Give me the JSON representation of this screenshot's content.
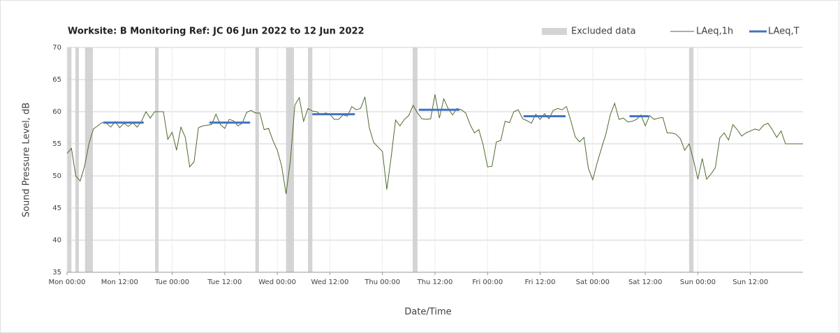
{
  "chart_data": {
    "type": "line",
    "title": "Worksite: B   Monitoring Ref: JC    06 Jun 2022 to 12 Jun 2022",
    "x_label": "Date/Time",
    "y_label": "Sound Pressure Level, dB",
    "xlim": [
      0,
      168
    ],
    "ylim": [
      35,
      70
    ],
    "xticks": [
      {
        "value": 0,
        "label": "Mon 00:00"
      },
      {
        "value": 12,
        "label": "Mon 12:00"
      },
      {
        "value": 24,
        "label": "Tue 00:00"
      },
      {
        "value": 36,
        "label": "Tue 12:00"
      },
      {
        "value": 48,
        "label": "Wed 00:00"
      },
      {
        "value": 60,
        "label": "Wed 12:00"
      },
      {
        "value": 72,
        "label": "Thu 00:00"
      },
      {
        "value": 84,
        "label": "Thu 12:00"
      },
      {
        "value": 96,
        "label": "Fri 00:00"
      },
      {
        "value": 108,
        "label": "Fri 12:00"
      },
      {
        "value": 120,
        "label": "Sat 00:00"
      },
      {
        "value": 132,
        "label": "Sat 12:00"
      },
      {
        "value": 144,
        "label": "Sun 00:00"
      },
      {
        "value": 156,
        "label": "Sun 12:00"
      }
    ],
    "yticks": [
      35,
      40,
      45,
      50,
      55,
      60,
      65,
      70
    ],
    "grid": true,
    "legend": "top-right",
    "excluded": {
      "name": "Excluded data",
      "color": "#d4d4d4",
      "ranges": [
        [
          0,
          1
        ],
        [
          1.9,
          2.7
        ],
        [
          4.1,
          5.9
        ],
        [
          20.1,
          20.9
        ],
        [
          43,
          43.8
        ],
        [
          50,
          51.8
        ],
        [
          55,
          56
        ],
        [
          78.9,
          80
        ],
        [
          142,
          143
        ]
      ]
    },
    "series": [
      {
        "name": "LAeq,1h",
        "color": "#4e6b2f",
        "x": [
          0,
          1,
          2,
          3,
          4,
          5,
          6,
          7,
          8,
          9,
          10,
          11,
          12,
          13,
          14,
          15,
          16,
          17,
          18,
          19,
          20,
          21,
          22,
          23,
          24,
          25,
          26,
          27,
          28,
          29,
          30,
          31,
          32,
          33,
          34,
          35,
          36,
          37,
          38,
          39,
          40,
          41,
          42,
          43,
          44,
          45,
          46,
          47,
          48,
          49,
          50,
          51,
          52,
          53,
          54,
          55,
          56,
          57,
          58,
          59,
          60,
          61,
          62,
          63,
          64,
          65,
          66,
          67,
          68,
          69,
          70,
          71,
          72,
          73,
          74,
          75,
          76,
          77,
          78,
          79,
          80,
          81,
          82,
          83,
          84,
          85,
          86,
          87,
          88,
          89,
          90,
          91,
          92,
          93,
          94,
          95,
          96,
          97,
          98,
          99,
          100,
          101,
          102,
          103,
          104,
          105,
          106,
          107,
          108,
          109,
          110,
          111,
          112,
          113,
          114,
          115,
          116,
          117,
          118,
          119,
          120,
          121,
          122,
          123,
          124,
          125,
          126,
          127,
          128,
          129,
          130,
          131,
          132,
          133,
          134,
          135,
          136,
          137,
          138,
          139,
          140,
          141,
          142,
          143,
          144,
          145,
          146,
          147,
          148,
          149,
          150,
          151,
          152,
          153,
          154,
          155,
          156,
          157,
          158,
          159,
          160,
          161,
          162,
          163,
          164,
          165,
          166,
          167,
          168
        ],
        "values": [
          53.5,
          54.3,
          50,
          49.2,
          51.5,
          55,
          57.3,
          57.8,
          58.3,
          58.2,
          57.6,
          58.5,
          57.5,
          58.2,
          57.7,
          58.3,
          57.6,
          58.5,
          60,
          59,
          60,
          60,
          60,
          55.7,
          56.8,
          54,
          57.6,
          56,
          51.4,
          52.2,
          57.5,
          57.8,
          57.9,
          58,
          59.6,
          58,
          57.4,
          58.8,
          58.6,
          57.8,
          58.2,
          59.9,
          60.2,
          59.8,
          59.8,
          57.2,
          57.4,
          55.5,
          54,
          51.5,
          47.2,
          52.5,
          61,
          62.2,
          58.5,
          60.5,
          60.1,
          60,
          59.5,
          59.8,
          59.6,
          58.8,
          58.8,
          59.5,
          59.3,
          60.8,
          60.3,
          60.5,
          62.3,
          57.5,
          55.2,
          54.5,
          53.8,
          47.9,
          53,
          58.7,
          57.8,
          58.8,
          59.4,
          61,
          59.8,
          58.9,
          58.8,
          58.9,
          62.7,
          59,
          62,
          60.5,
          59.5,
          60.5,
          60.3,
          59.8,
          58,
          56.7,
          57.2,
          54.8,
          51.4,
          51.5,
          55.3,
          55.5,
          58.5,
          58.3,
          60,
          60.3,
          58.9,
          58.6,
          58.2,
          59.6,
          58.8,
          59.7,
          58.9,
          60.2,
          60.5,
          60.3,
          60.8,
          58.6,
          56.1,
          55.3,
          56,
          51.2,
          49.4,
          52,
          54.3,
          56.5,
          59.5,
          61.3,
          58.8,
          59,
          58.4,
          58.5,
          58.8,
          59.5,
          57.8,
          59.4,
          58.8,
          59,
          59.1,
          56.7,
          56.7,
          56.5,
          55.8,
          54,
          55,
          52.5,
          49.5,
          52.7,
          49.5,
          50.3,
          51.3,
          55.9,
          56.7,
          55.6,
          58,
          57.2,
          56.2,
          56.7,
          57,
          57.3,
          57.1,
          57.9,
          58.2,
          57.2,
          56,
          57,
          55,
          55,
          55,
          55,
          55
        ]
      }
    ],
    "period_levels": {
      "name": "LAeq,T",
      "color": "#4472c4",
      "segments": [
        {
          "x": [
            8.3,
            17.5
          ],
          "value": 58.3
        },
        {
          "x": [
            32.5,
            41.8
          ],
          "value": 58.3
        },
        {
          "x": [
            56,
            65.7
          ],
          "value": 59.6
        },
        {
          "x": [
            80.3,
            89.6
          ],
          "value": 60.3
        },
        {
          "x": [
            104.2,
            113.8
          ],
          "value": 59.3
        },
        {
          "x": [
            128.4,
            132.8
          ],
          "value": 59.3
        }
      ]
    }
  }
}
